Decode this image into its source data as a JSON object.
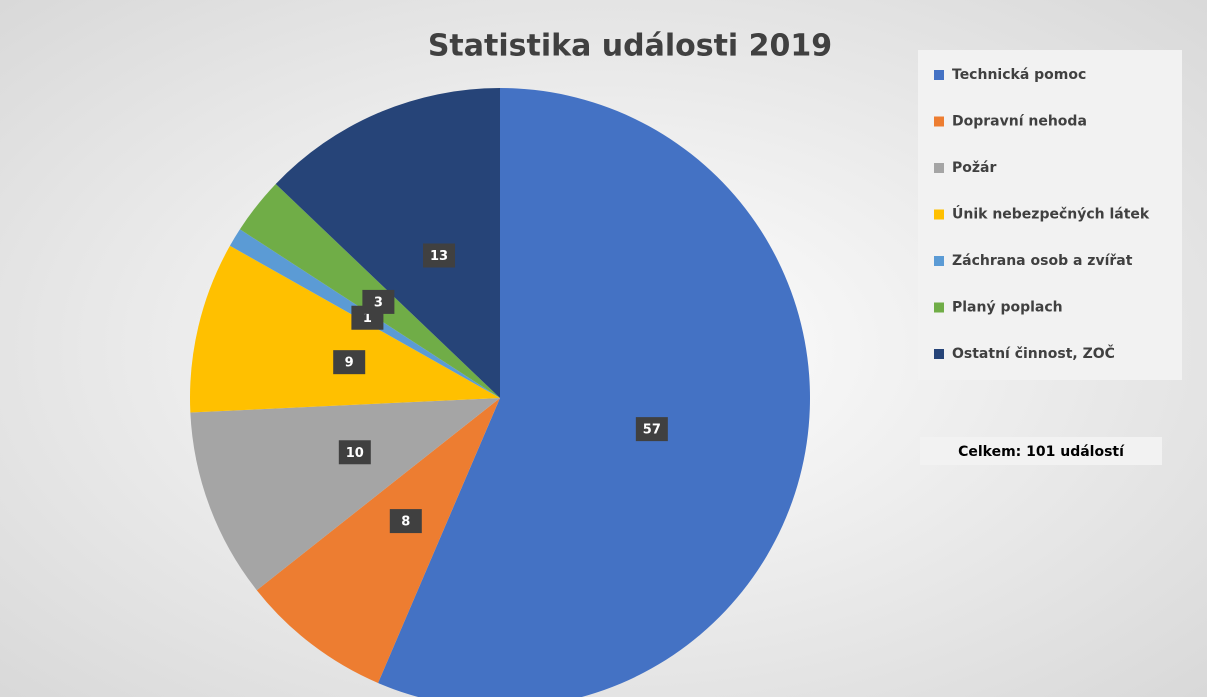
{
  "chart_data": {
    "type": "pie",
    "title": "Statistika události 2019",
    "categories": [
      "Technická pomoc",
      "Dopravní nehoda",
      "Požár",
      "Únik nebezpečných látek",
      "Záchrana osob a zvířat",
      "Planý poplach",
      "Ostatní činnost, ZOČ"
    ],
    "values": [
      57,
      8,
      10,
      9,
      1,
      3,
      13
    ],
    "colors": [
      "#4472c4",
      "#ed7d31",
      "#a5a5a5",
      "#ffc000",
      "#5b9bd5",
      "#70ad47",
      "#264478"
    ],
    "legend": "right",
    "annotation": "Celkem: 101 událostí"
  }
}
